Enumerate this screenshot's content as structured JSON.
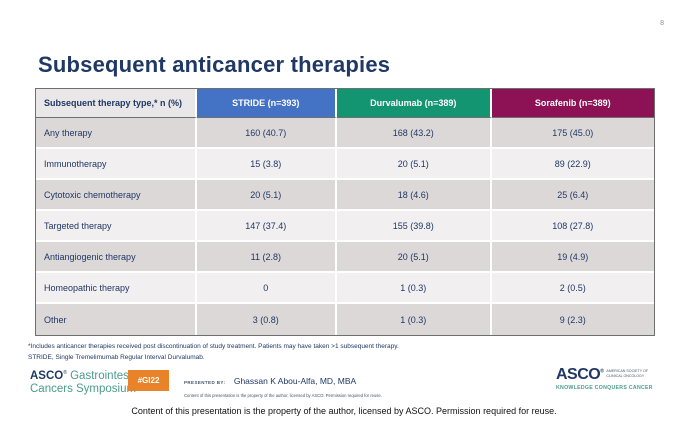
{
  "slide": {
    "page_number": "8",
    "title": "Subsequent anticancer therapies"
  },
  "colors": {
    "title_navy": "#1f3864",
    "stride_blue": "#4472c4",
    "durvalumab_green": "#149572",
    "sorafenib_maroon": "#8c1155",
    "label_header_gray": "#e9e7e7",
    "row_odd": "#ddd8d8",
    "row_even": "#f1efef",
    "badge_orange": "#e8832a",
    "teal": "#4a9c8e"
  },
  "table": {
    "headers": [
      {
        "label": "Subsequent therapy type,* n (%)",
        "bg": "#e9e7e7"
      },
      {
        "label": "STRIDE (n=393)",
        "bg": "#4472c4"
      },
      {
        "label": "Durvalumab (n=389)",
        "bg": "#149572"
      },
      {
        "label": "Sorafenib (n=389)",
        "bg": "#8c1155"
      }
    ],
    "rows": [
      {
        "cells": [
          "Any therapy",
          "160 (40.7)",
          "168 (43.2)",
          "175 (45.0)"
        ]
      },
      {
        "cells": [
          "Immunotherapy",
          "15 (3.8)",
          "20 (5.1)",
          "89 (22.9)"
        ]
      },
      {
        "cells": [
          "Cytotoxic chemotherapy",
          "20 (5.1)",
          "18 (4.6)",
          "25 (6.4)"
        ]
      },
      {
        "cells": [
          "Targeted therapy",
          "147 (37.4)",
          "155 (39.8)",
          "108 (27.8)"
        ]
      },
      {
        "cells": [
          "Antiangiogenic therapy",
          "11 (2.8)",
          "20 (5.1)",
          "19 (4.9)"
        ]
      },
      {
        "cells": [
          "Homeopathic therapy",
          "0",
          "1 (0.3)",
          "2 (0.5)"
        ]
      },
      {
        "cells": [
          "Other",
          "3 (0.8)",
          "1 (0.3)",
          "9 (2.3)"
        ]
      }
    ]
  },
  "chart_data": {
    "type": "table",
    "title": "Subsequent anticancer therapies",
    "columns": [
      "Subsequent therapy type,* n (%)",
      "STRIDE (n=393)",
      "Durvalumab (n=389)",
      "Sorafenib (n=389)"
    ],
    "rows": [
      [
        "Any therapy",
        "160 (40.7)",
        "168 (43.2)",
        "175 (45.0)"
      ],
      [
        "Immunotherapy",
        "15 (3.8)",
        "20 (5.1)",
        "89 (22.9)"
      ],
      [
        "Cytotoxic chemotherapy",
        "20 (5.1)",
        "18 (4.6)",
        "25 (6.4)"
      ],
      [
        "Targeted therapy",
        "147 (37.4)",
        "155 (39.8)",
        "108 (27.8)"
      ],
      [
        "Antiangiogenic therapy",
        "11 (2.8)",
        "20 (5.1)",
        "19 (4.9)"
      ],
      [
        "Homeopathic therapy",
        "0",
        "1 (0.3)",
        "2 (0.5)"
      ],
      [
        "Other",
        "3 (0.8)",
        "1 (0.3)",
        "9 (2.3)"
      ]
    ]
  },
  "footnotes": {
    "line1": "*Includes anticancer therapies received post discontinuation of study treatment. Patients may have taken >1 subsequent therapy.",
    "line2": "STRIDE, Single Tremelimumab Regular Interval Durvalumab."
  },
  "footer": {
    "gi_logo": {
      "asco": "ASCO",
      "reg": "®",
      "line1_rest": " Gastrointestinal",
      "line2": "Cancers Symposium"
    },
    "badge": "#GI22",
    "presented_by_label": "PRESENTED BY:",
    "presenter_name": "Ghassan K Abou-Alfa, MD, MBA",
    "presenter_fine_print": "Content of this presentation is the property of the author, licensed by ASCO. Permission required for reuse.",
    "asco_logo": {
      "word": "ASCO",
      "reg": "®",
      "society_line1": "AMERICAN SOCIETY OF",
      "society_line2": "CLINICAL ONCOLOGY",
      "tagline": "KNOWLEDGE CONQUERS CANCER"
    }
  },
  "bottom_caption": "Content of this presentation is the property of the author, licensed by ASCO. Permission required for reuse."
}
